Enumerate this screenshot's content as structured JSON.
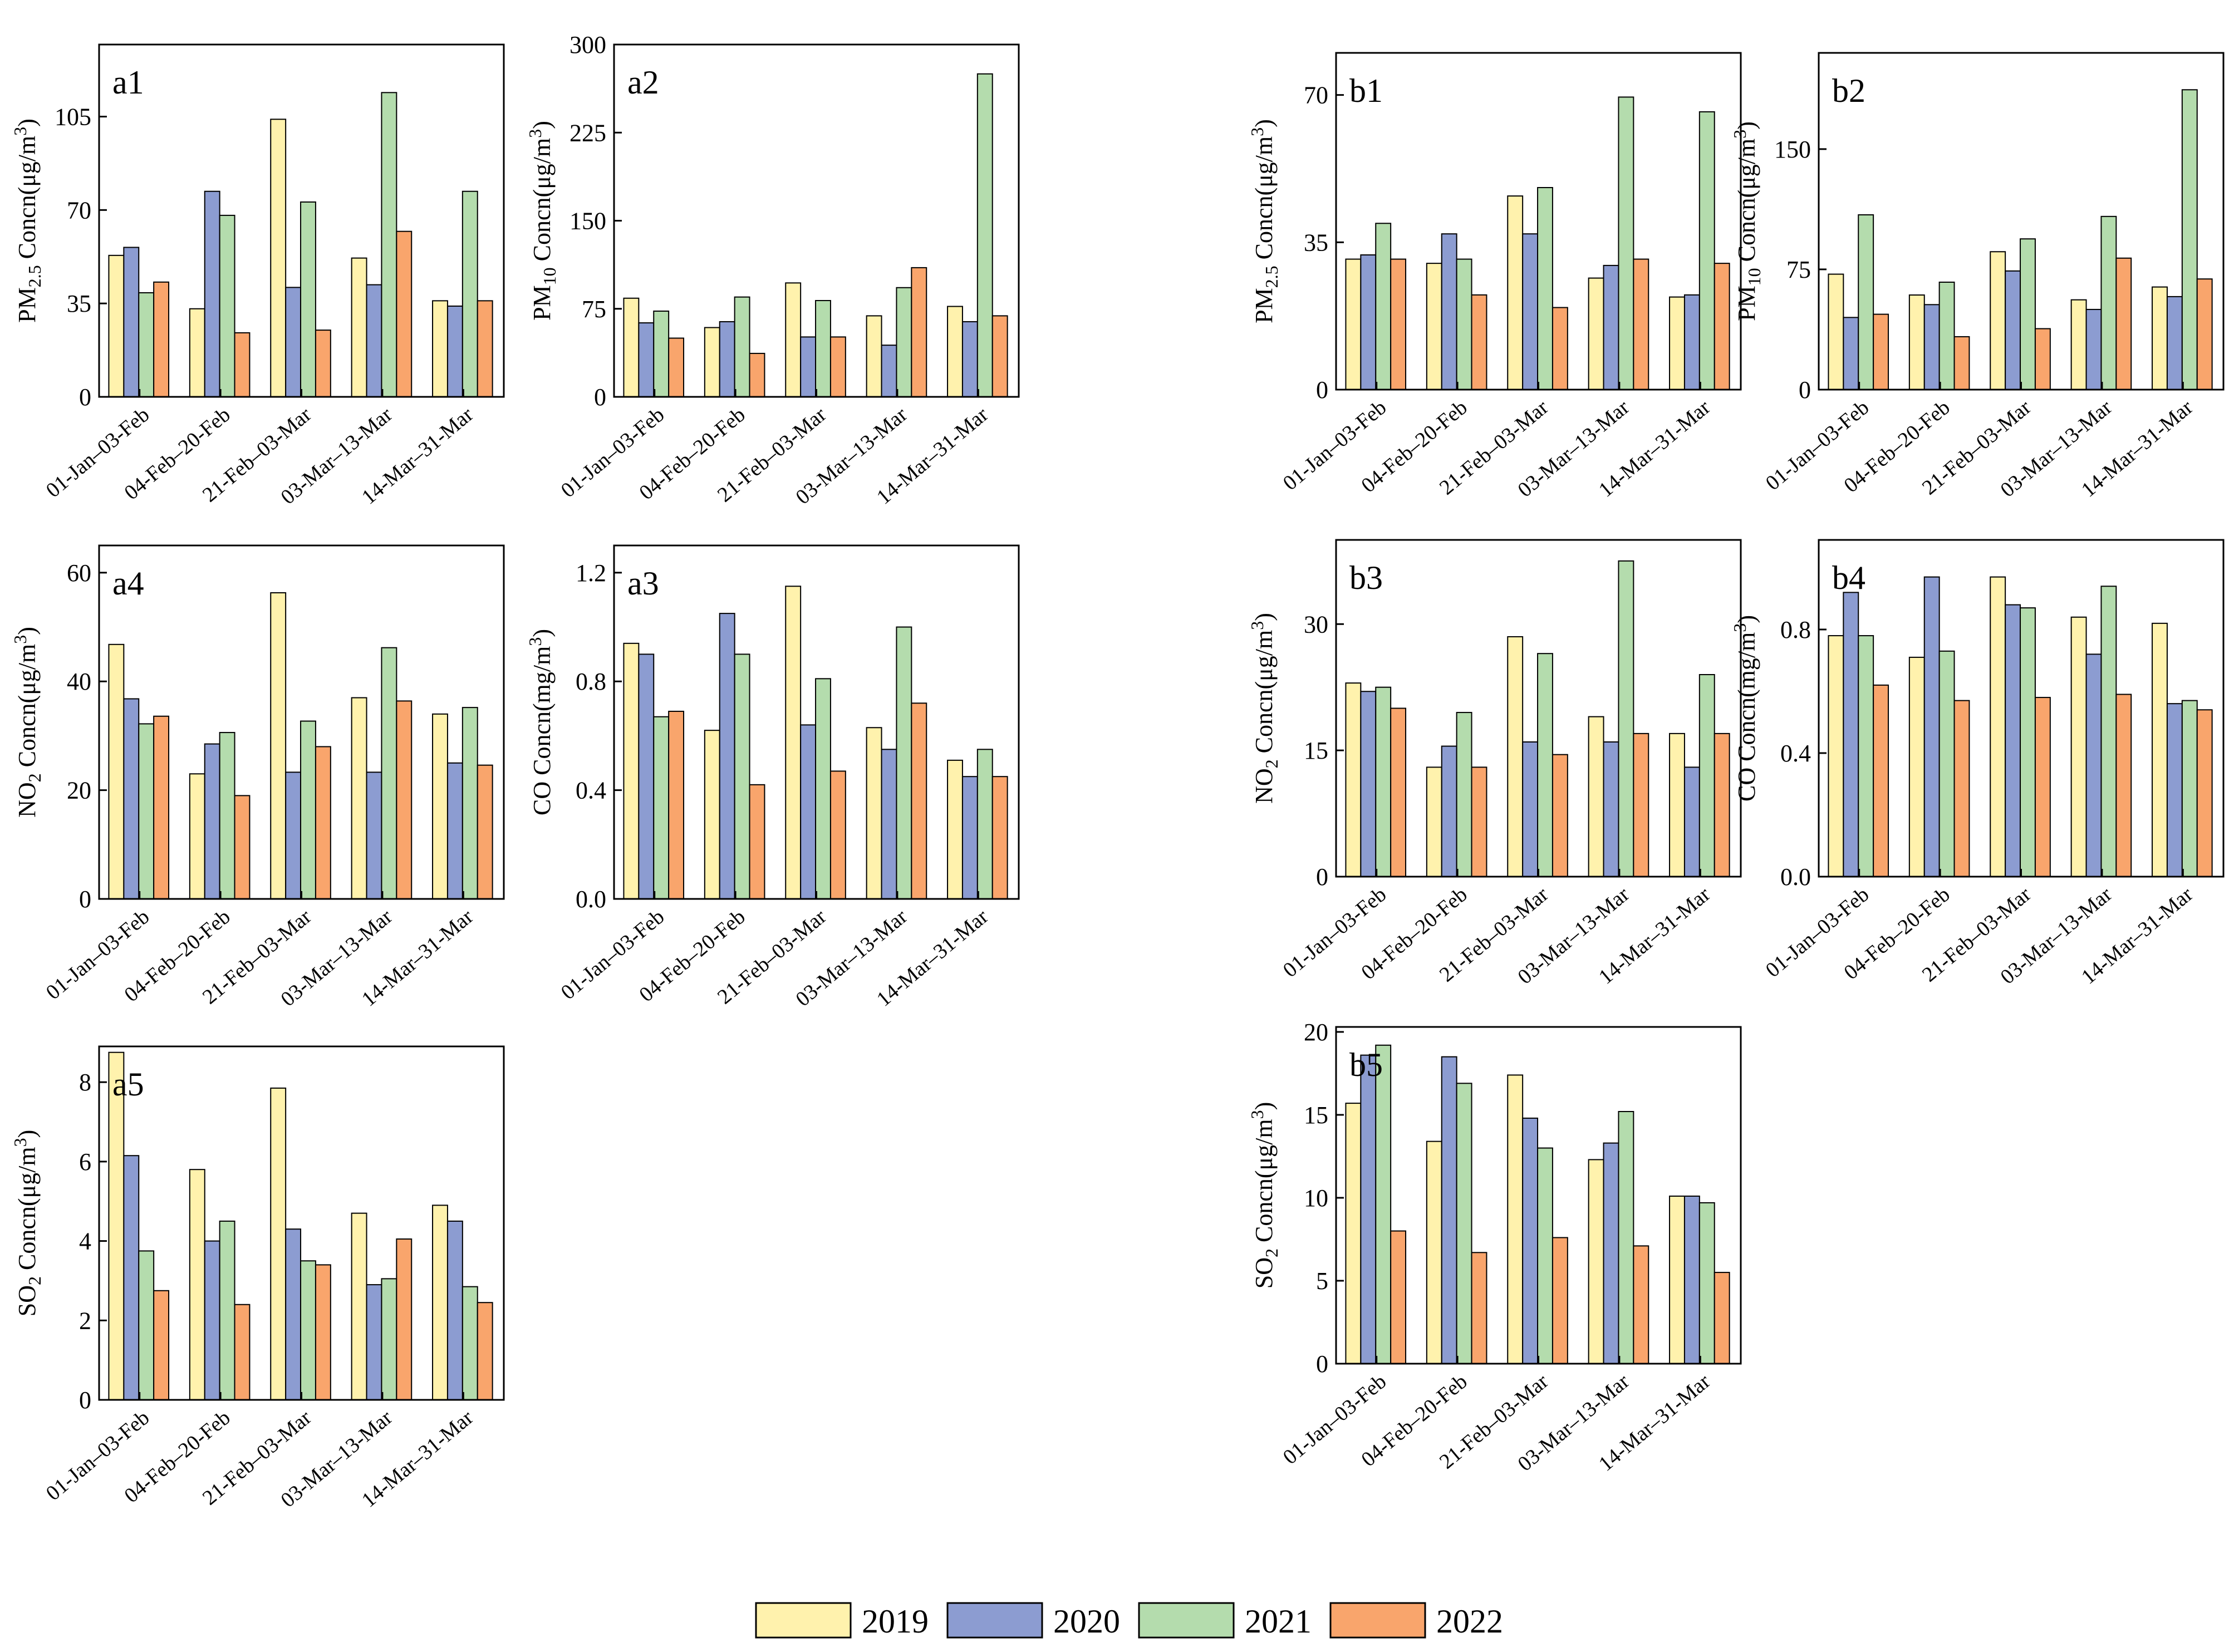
{
  "colors": {
    "2019": "#fff2ad",
    "2020": "#8c9cd1",
    "2021": "#b4dcad",
    "2022": "#f9a56c"
  },
  "legend": {
    "items": [
      {
        "key": "2019",
        "label": "2019"
      },
      {
        "key": "2020",
        "label": "2020"
      },
      {
        "key": "2021",
        "label": "2021"
      },
      {
        "key": "2022",
        "label": "2022"
      }
    ]
  },
  "chart_data": [
    {
      "id": "a1",
      "type": "bar",
      "panel_label": "a1",
      "ylabel": {
        "pre": "PM",
        "sub": "2.5",
        "post": " Concn(μg/m",
        "sup": "3",
        "end": ")"
      },
      "ylim": [
        0,
        132
      ],
      "yticks": [
        0,
        35,
        70,
        105
      ],
      "categories": [
        "01-Jan–03-Feb",
        "04-Feb–20-Feb",
        "21-Feb–03-Mar",
        "03-Mar–13-Mar",
        "14-Mar–31-Mar"
      ],
      "series": [
        {
          "name": "2019",
          "values": [
            53,
            33,
            104,
            52,
            36
          ]
        },
        {
          "name": "2020",
          "values": [
            56,
            77,
            41,
            42,
            34
          ]
        },
        {
          "name": "2021",
          "values": [
            39,
            68,
            73,
            114,
            77
          ]
        },
        {
          "name": "2022",
          "values": [
            43,
            24,
            25,
            62,
            36
          ]
        }
      ]
    },
    {
      "id": "a2",
      "type": "bar",
      "panel_label": "a2",
      "ylabel": {
        "pre": "PM",
        "sub": "10",
        "post": " Concn(μg/m",
        "sup": "3",
        "end": ")"
      },
      "ylim": [
        0,
        300
      ],
      "yticks": [
        0,
        75,
        150,
        225,
        300
      ],
      "categories": [
        "01-Jan–03-Feb",
        "04-Feb–20-Feb",
        "21-Feb–03-Mar",
        "03-Mar–13-Mar",
        "14-Mar–31-Mar"
      ],
      "series": [
        {
          "name": "2019",
          "values": [
            84,
            59,
            97,
            69,
            77
          ]
        },
        {
          "name": "2020",
          "values": [
            63,
            64,
            51,
            44,
            64
          ]
        },
        {
          "name": "2021",
          "values": [
            73,
            85,
            82,
            93,
            275
          ]
        },
        {
          "name": "2022",
          "values": [
            50,
            37,
            51,
            110,
            69
          ]
        }
      ]
    },
    {
      "id": "a4",
      "type": "bar",
      "panel_label": "a4",
      "ylabel": {
        "pre": "NO",
        "sub": "2",
        "post": " Concn(μg/m",
        "sup": "3",
        "end": ")"
      },
      "ylim": [
        0,
        65
      ],
      "yticks": [
        0,
        20,
        40,
        60
      ],
      "categories": [
        "01-Jan–03-Feb",
        "04-Feb–20-Feb",
        "21-Feb–03-Mar",
        "03-Mar–13-Mar",
        "14-Mar–31-Mar"
      ],
      "series": [
        {
          "name": "2019",
          "values": [
            46.8,
            23,
            56.3,
            37,
            34
          ]
        },
        {
          "name": "2020",
          "values": [
            36.8,
            28.5,
            23.3,
            23.3,
            25
          ]
        },
        {
          "name": "2021",
          "values": [
            32.2,
            30.6,
            32.7,
            46.2,
            35.2
          ]
        },
        {
          "name": "2022",
          "values": [
            33.6,
            19,
            28,
            36.4,
            24.6
          ]
        }
      ]
    },
    {
      "id": "a3",
      "type": "bar",
      "panel_label": "a3",
      "ylabel": {
        "pre": "CO Concn(mg/m",
        "sub": "",
        "post": "",
        "sup": "3",
        "end": ")"
      },
      "ylim": [
        0,
        1.3
      ],
      "yticks": [
        0.0,
        0.4,
        0.8,
        1.2
      ],
      "categories": [
        "01-Jan–03-Feb",
        "04-Feb–20-Feb",
        "21-Feb–03-Mar",
        "03-Mar–13-Mar",
        "14-Mar–31-Mar"
      ],
      "series": [
        {
          "name": "2019",
          "values": [
            0.94,
            0.62,
            1.15,
            0.63,
            0.51
          ]
        },
        {
          "name": "2020",
          "values": [
            0.9,
            1.05,
            0.64,
            0.55,
            0.45
          ]
        },
        {
          "name": "2021",
          "values": [
            0.67,
            0.9,
            0.81,
            1.0,
            0.55
          ]
        },
        {
          "name": "2022",
          "values": [
            0.69,
            0.42,
            0.47,
            0.72,
            0.45
          ]
        }
      ]
    },
    {
      "id": "a5",
      "type": "bar",
      "panel_label": "a5",
      "ylabel": {
        "pre": "SO",
        "sub": "2",
        "post": " Concn(μg/m",
        "sup": "3",
        "end": ")"
      },
      "ylim": [
        0,
        8.9
      ],
      "yticks": [
        0,
        2,
        4,
        6,
        8
      ],
      "categories": [
        "01-Jan–03-Feb",
        "04-Feb–20-Feb",
        "21-Feb–03-Mar",
        "03-Mar–13-Mar",
        "14-Mar–31-Mar"
      ],
      "series": [
        {
          "name": "2019",
          "values": [
            8.75,
            5.8,
            7.85,
            4.7,
            4.9
          ]
        },
        {
          "name": "2020",
          "values": [
            6.15,
            4.0,
            4.3,
            2.9,
            4.5
          ]
        },
        {
          "name": "2021",
          "values": [
            3.75,
            4.5,
            3.5,
            3.05,
            2.85
          ]
        },
        {
          "name": "2022",
          "values": [
            2.75,
            2.4,
            3.4,
            4.05,
            2.45
          ]
        }
      ]
    },
    {
      "id": "b1",
      "type": "bar",
      "panel_label": "b1",
      "ylabel": {
        "pre": "PM",
        "sub": "2.5",
        "post": " Concn(μg/m",
        "sup": "3",
        "end": ")"
      },
      "ylim": [
        0,
        80
      ],
      "yticks": [
        0,
        35,
        70
      ],
      "categories": [
        "01-Jan–03-Feb",
        "04-Feb–20-Feb",
        "21-Feb–03-Mar",
        "03-Mar–13-Mar",
        "14-Mar–31-Mar"
      ],
      "series": [
        {
          "name": "2019",
          "values": [
            31,
            30,
            46,
            26.5,
            22
          ]
        },
        {
          "name": "2020",
          "values": [
            32,
            37,
            37,
            29.5,
            22.5
          ]
        },
        {
          "name": "2021",
          "values": [
            39.5,
            31,
            48,
            69.5,
            66
          ]
        },
        {
          "name": "2022",
          "values": [
            31,
            22.5,
            19.5,
            31,
            30
          ]
        }
      ]
    },
    {
      "id": "b2",
      "type": "bar",
      "panel_label": "b2",
      "ylabel": {
        "pre": "PM",
        "sub": "10",
        "post": " Concn(μg/m",
        "sup": "3",
        "end": ")"
      },
      "ylim": [
        0,
        210
      ],
      "yticks": [
        0,
        75,
        150
      ],
      "categories": [
        "01-Jan–03-Feb",
        "04-Feb–20-Feb",
        "21-Feb–03-Mar",
        "03-Mar–13-Mar",
        "14-Mar–31-Mar"
      ],
      "series": [
        {
          "name": "2019",
          "values": [
            72,
            59,
            86,
            56,
            64
          ]
        },
        {
          "name": "2020",
          "values": [
            45,
            53,
            74,
            50,
            58
          ]
        },
        {
          "name": "2021",
          "values": [
            109,
            67,
            94,
            108,
            187
          ]
        },
        {
          "name": "2022",
          "values": [
            47,
            33,
            38,
            82,
            69
          ]
        }
      ]
    },
    {
      "id": "b3",
      "type": "bar",
      "panel_label": "b3",
      "ylabel": {
        "pre": "NO",
        "sub": "2",
        "post": " Concn(μg/m",
        "sup": "3",
        "end": ")"
      },
      "ylim": [
        0,
        40
      ],
      "yticks": [
        0,
        15,
        30
      ],
      "categories": [
        "01-Jan–03-Feb",
        "04-Feb–20-Feb",
        "21-Feb–03-Mar",
        "03-Mar–13-Mar",
        "14-Mar–31-Mar"
      ],
      "series": [
        {
          "name": "2019",
          "values": [
            23,
            13,
            28.5,
            19,
            17
          ]
        },
        {
          "name": "2020",
          "values": [
            22,
            15.5,
            16,
            16,
            13
          ]
        },
        {
          "name": "2021",
          "values": [
            22.5,
            19.5,
            26.5,
            37.5,
            24
          ]
        },
        {
          "name": "2022",
          "values": [
            20,
            13,
            14.5,
            17,
            17
          ]
        }
      ]
    },
    {
      "id": "b4",
      "type": "bar",
      "panel_label": "b4",
      "ylabel": {
        "pre": "CO Concn(mg/m",
        "sub": "",
        "post": "",
        "sup": "3",
        "end": ")"
      },
      "ylim": [
        0,
        1.09
      ],
      "yticks": [
        0.0,
        0.4,
        0.8
      ],
      "categories": [
        "01-Jan–03-Feb",
        "04-Feb–20-Feb",
        "21-Feb–03-Mar",
        "03-Mar–13-Mar",
        "14-Mar–31-Mar"
      ],
      "series": [
        {
          "name": "2019",
          "values": [
            0.78,
            0.71,
            0.97,
            0.84,
            0.82
          ]
        },
        {
          "name": "2020",
          "values": [
            0.92,
            0.97,
            0.88,
            0.72,
            0.56
          ]
        },
        {
          "name": "2021",
          "values": [
            0.78,
            0.73,
            0.87,
            0.94,
            0.57
          ]
        },
        {
          "name": "2022",
          "values": [
            0.62,
            0.57,
            0.58,
            0.59,
            0.54
          ]
        }
      ]
    },
    {
      "id": "b5",
      "type": "bar",
      "panel_label": "b5",
      "ylabel": {
        "pre": "SO",
        "sub": "2",
        "post": " Concn(μg/m",
        "sup": "3",
        "end": ")"
      },
      "ylim": [
        0,
        20.3
      ],
      "yticks": [
        0,
        5,
        10,
        15,
        20
      ],
      "categories": [
        "01-Jan–03-Feb",
        "04-Feb–20-Feb",
        "21-Feb–03-Mar",
        "03-Mar–13-Mar",
        "14-Mar–31-Mar"
      ],
      "series": [
        {
          "name": "2019",
          "values": [
            15.7,
            13.4,
            17.4,
            12.3,
            10.1
          ]
        },
        {
          "name": "2020",
          "values": [
            18.6,
            18.5,
            14.8,
            13.3,
            10.1
          ]
        },
        {
          "name": "2021",
          "values": [
            19.2,
            16.9,
            13.0,
            15.2,
            9.7
          ]
        },
        {
          "name": "2022",
          "values": [
            8.0,
            6.7,
            7.6,
            7.1,
            5.5
          ]
        }
      ]
    }
  ]
}
